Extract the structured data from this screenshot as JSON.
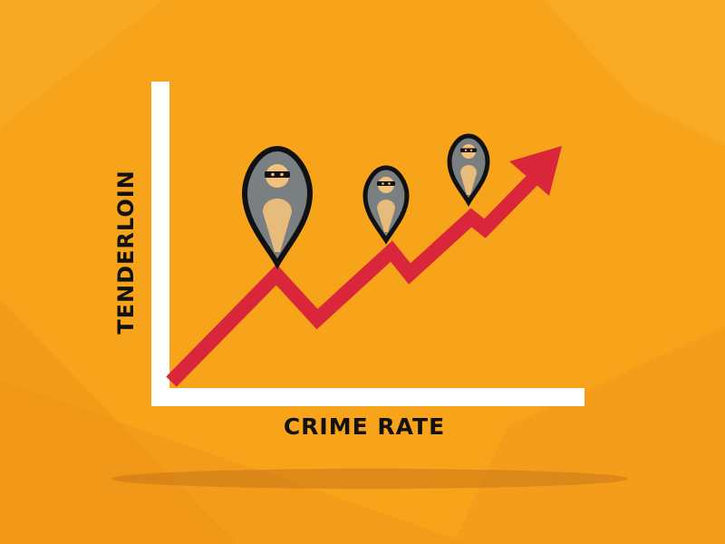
{
  "labels": {
    "y_axis": "TENDERLOIN",
    "x_axis": "CRIME RATE"
  },
  "colors": {
    "background": "#f7a41a",
    "background_dark": "#ee9417",
    "axes": "#ffffff",
    "trend_arrow": "#d9263a",
    "pin_outline": "#111111",
    "pin_fill": "#7a7f82",
    "figure_fill": "#f3c27a",
    "mask_band": "#111111",
    "text": "#111111"
  },
  "icons": {
    "pins": [
      "criminal-location-pin-icon",
      "criminal-location-pin-icon",
      "criminal-location-pin-icon"
    ],
    "trend": "trend-up-arrow-icon"
  }
}
